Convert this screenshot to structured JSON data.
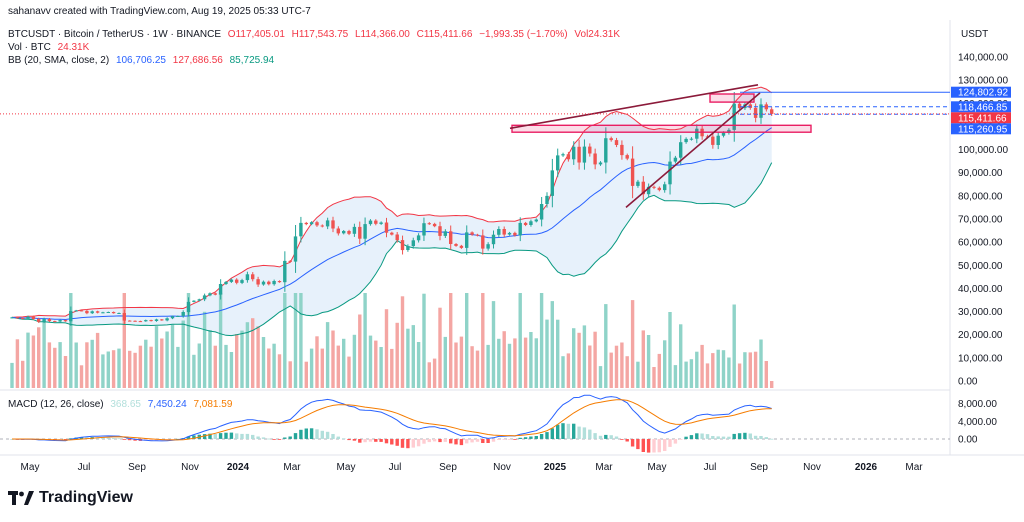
{
  "header": {
    "credit": "sahanavv created with TradingView.com, Aug 19, 2025 05:33 UTC-7",
    "symbol": "BTCUSDT · Bitcoin / TetherUS · 1W · BINANCE",
    "ohlc": {
      "o": "O117,405.01",
      "h": "H117,543.75",
      "l": "L114,366.00",
      "c": "C115,411.66",
      "chg": "−1,993.35 (−1.70%)",
      "vol": "Vol24.31K"
    },
    "vol_label": "Vol · BTC",
    "vol_value": "24.31K",
    "bb_label": "BB (20, SMA, close, 2)",
    "bb_basis": "106,706.25",
    "bb_upper": "127,686.56",
    "bb_lower": "85,725.94",
    "macd_label": "MACD (12, 26, close)",
    "macd_hist": "368.65",
    "macd_line": "7,450.24",
    "macd_signal": "7,081.59",
    "unit": "USDT"
  },
  "footer": {
    "brand": "TradingView"
  },
  "colors": {
    "up": "#26a69a",
    "down": "#ef5350",
    "upVol": "#8fd3c8",
    "downVol": "#f4a6a3",
    "bbBasis": "#2962ff",
    "bbUpper": "#f23645",
    "bbLower": "#089981",
    "bbFill": "#e3eefa",
    "macd": "#2962ff",
    "signal": "#f57c00",
    "trend": "#8b1a3a",
    "zone": "#e91e63"
  },
  "chart_data": {
    "type": "candlestick",
    "timeframe": "1W",
    "x_ticks": [
      "May",
      "Jul",
      "Sep",
      "Nov",
      "2024",
      "Mar",
      "May",
      "Jul",
      "Sep",
      "Nov",
      "2025",
      "Mar",
      "May",
      "Jul",
      "Sep",
      "Nov",
      "2026",
      "Mar"
    ],
    "y_ticks": [
      "140,000.00",
      "130,000.00",
      "120,000.00",
      "110,000.00",
      "100,000.00",
      "90,000.00",
      "80,000.00",
      "70,000.00",
      "60,000.00",
      "50,000.00",
      "40,000.00",
      "30,000.00",
      "20,000.00",
      "10,000.00",
      "0.00"
    ],
    "y_range": [
      0,
      140000
    ],
    "price_labels": [
      {
        "value": 124802.92,
        "text": "124,802.92",
        "color": "#2962ff"
      },
      {
        "value": 118466.85,
        "text": "118,466.85",
        "color": "#2962ff"
      },
      {
        "value": 115411.66,
        "text": "115,411.66",
        "color": "#f23645"
      },
      {
        "value": 115260.95,
        "text": "115,260.95",
        "color": "#2962ff"
      }
    ],
    "macd_ticks": [
      "8,000.00",
      "4,000.00",
      "0.00"
    ],
    "macd_range": [
      -2500,
      9500
    ],
    "closes": [
      27500,
      27200,
      26900,
      27800,
      26800,
      25600,
      26800,
      25900,
      25700,
      26300,
      25800,
      30200,
      30500,
      30300,
      29300,
      30100,
      29500,
      29700,
      29800,
      29300,
      29400,
      26100,
      26000,
      25900,
      25800,
      26300,
      25900,
      26600,
      26200,
      27100,
      27900,
      28100,
      29800,
      34200,
      34700,
      35300,
      37000,
      37900,
      37300,
      41900,
      42800,
      43800,
      42400,
      43600,
      46100,
      44000,
      41700,
      42900,
      41800,
      43200,
      42700,
      51900,
      51600,
      62500,
      68300,
      67800,
      68600,
      67200,
      66800,
      69400,
      65900,
      63800,
      64800,
      63600,
      66600,
      61500,
      67800,
      69300,
      67900,
      68500,
      64100,
      63300,
      60900,
      56600,
      58300,
      60800,
      62900,
      68200,
      67900,
      66900,
      62700,
      64700,
      59200,
      58400,
      57500,
      64200,
      63200,
      62900,
      57200,
      59100,
      63200,
      65700,
      63300,
      64000,
      62900,
      68300,
      67400,
      69000,
      69800,
      76500,
      80000,
      91000,
      97500,
      98000,
      95800,
      101200,
      94400,
      101300,
      98300,
      93600,
      94400,
      104900,
      104100,
      102000,
      97600,
      96100,
      84300,
      86100,
      80700,
      83900,
      83500,
      82500,
      85000,
      94800,
      96500,
      103200,
      104600,
      104700,
      109000,
      105700,
      105600,
      102000,
      106000,
      107200,
      108500,
      119800,
      117900,
      119500,
      118000,
      113700,
      119500,
      117400,
      115400
    ],
    "bb": {
      "basis": "20-period SMA of close",
      "upper_last": 127686.56,
      "basis_last": 106706.25,
      "lower_last": 85725.94
    },
    "volume": {
      "last": 24310,
      "unit": "BTC"
    },
    "macd": {
      "fast": 12,
      "slow": 26,
      "source": "close",
      "histogram_last": 368.65,
      "macd_last": 7450.24,
      "signal_last": 7081.59
    }
  }
}
